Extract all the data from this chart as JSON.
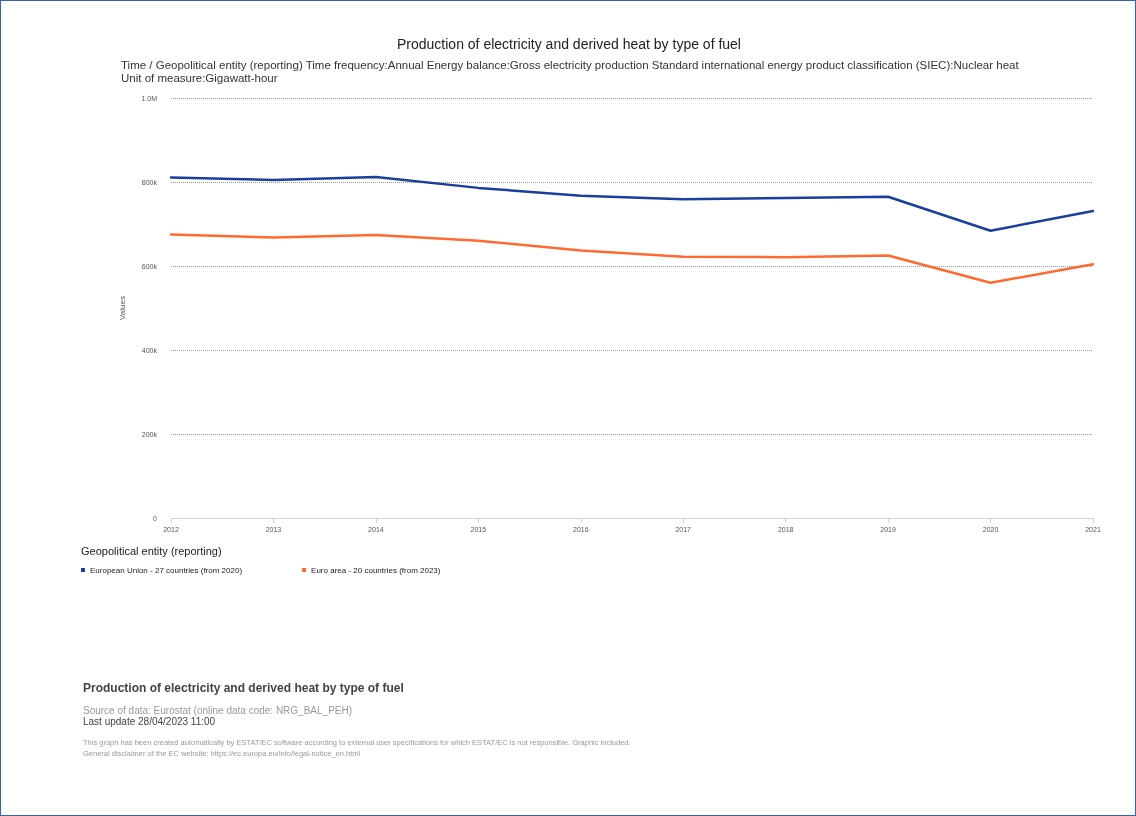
{
  "chart_data": {
    "type": "line",
    "title": "Production of electricity and derived heat by type of fuel",
    "subtitle": "Time / Geopolitical entity (reporting)  Time frequency:Annual  Energy balance:Gross electricity production  Standard international energy product classification (SIEC):Nuclear heat  Unit of measure:Gigawatt-hour",
    "ylabel": "Values",
    "legend_title": "Geopolitical entity (reporting)",
    "categories": [
      "2012",
      "2013",
      "2014",
      "2015",
      "2016",
      "2017",
      "2018",
      "2019",
      "2020",
      "2021"
    ],
    "series": [
      {
        "name": "European Union - 27 countries (from 2020)",
        "color": "#1a3f9c",
        "values": [
          811000,
          805000,
          812000,
          786000,
          767000,
          759000,
          762000,
          765000,
          684000,
          731000
        ]
      },
      {
        "name": "Euro area - 20 countries (from 2023)",
        "color": "#ff6a30",
        "values": [
          675000,
          668000,
          674000,
          660000,
          637000,
          622000,
          621000,
          625000,
          560000,
          604000
        ]
      }
    ],
    "ylim": [
      0,
      1000000
    ],
    "yticks": [
      {
        "value": 0,
        "label": "0"
      },
      {
        "value": 200000,
        "label": "200k"
      },
      {
        "value": 400000,
        "label": "400k"
      },
      {
        "value": 600000,
        "label": "600k"
      },
      {
        "value": 800000,
        "label": "800k"
      },
      {
        "value": 1000000,
        "label": "1.0M"
      }
    ],
    "grid": "y",
    "legend": "bottom",
    "marker": "none",
    "line_style": "solid",
    "annotations": [
      "Production of electricity and derived heat by type of fuel",
      "Source of data: Eurostat (online data code: NRG_BAL_PEH)",
      "Last update 28/04/2023 11:00",
      "This graph has been created automatically by ESTAT/EC software according to external user specifications for which ESTAT/EC is not responsible. Graphic included.",
      "General disclaimer of the EC website: https://ec.europa.eu/info/legal-notice_en.html"
    ]
  }
}
